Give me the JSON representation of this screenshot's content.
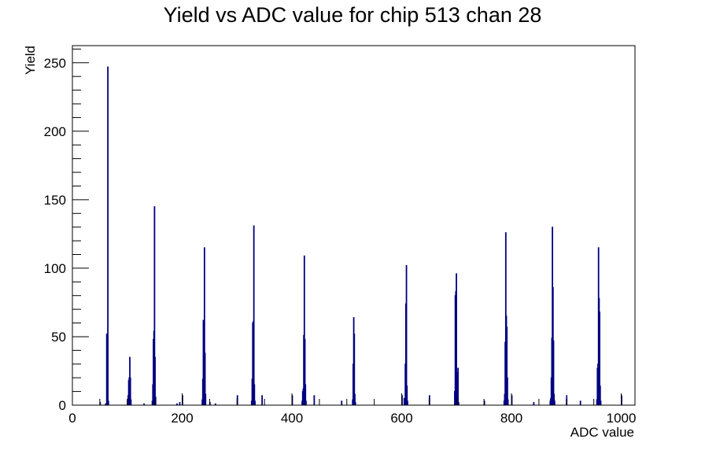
{
  "chart_data": {
    "type": "bar",
    "title": "Yield vs ADC value for chip 513 chan 28",
    "xlabel": "ADC value",
    "ylabel": "Yield",
    "xlim": [
      0,
      1025
    ],
    "ylim": [
      0,
      262.5
    ],
    "x_ticks": [
      0,
      200,
      400,
      600,
      800,
      1000
    ],
    "y_ticks": [
      0,
      50,
      100,
      150,
      200,
      250
    ],
    "grid": false,
    "legend": "none",
    "color": "#000080",
    "bin_width": 1,
    "bins": [
      [
        50,
        2
      ],
      [
        60,
        1
      ],
      [
        62,
        52
      ],
      [
        63,
        33
      ],
      [
        64,
        247
      ],
      [
        65,
        3
      ],
      [
        100,
        3
      ],
      [
        101,
        7
      ],
      [
        102,
        18
      ],
      [
        103,
        20
      ],
      [
        104,
        35
      ],
      [
        105,
        20
      ],
      [
        106,
        4
      ],
      [
        130,
        1
      ],
      [
        145,
        3
      ],
      [
        146,
        15
      ],
      [
        147,
        48
      ],
      [
        148,
        54
      ],
      [
        149,
        145
      ],
      [
        150,
        35
      ],
      [
        151,
        6
      ],
      [
        190,
        1
      ],
      [
        195,
        2
      ],
      [
        200,
        7
      ],
      [
        236,
        4
      ],
      [
        237,
        19
      ],
      [
        238,
        62
      ],
      [
        239,
        37
      ],
      [
        240,
        115
      ],
      [
        241,
        38
      ],
      [
        242,
        8
      ],
      [
        250,
        2
      ],
      [
        260,
        1
      ],
      [
        300,
        7
      ],
      [
        326,
        3
      ],
      [
        327,
        19
      ],
      [
        328,
        60
      ],
      [
        329,
        61
      ],
      [
        330,
        131
      ],
      [
        331,
        15
      ],
      [
        332,
        3
      ],
      [
        345,
        7
      ],
      [
        400,
        7
      ],
      [
        418,
        3
      ],
      [
        419,
        10
      ],
      [
        420,
        12
      ],
      [
        421,
        51
      ],
      [
        422,
        109
      ],
      [
        423,
        48
      ],
      [
        424,
        15
      ],
      [
        425,
        3
      ],
      [
        440,
        7
      ],
      [
        490,
        3
      ],
      [
        510,
        4
      ],
      [
        511,
        30
      ],
      [
        512,
        64
      ],
      [
        513,
        52
      ],
      [
        514,
        8
      ],
      [
        515,
        2
      ],
      [
        600,
        7
      ],
      [
        604,
        5
      ],
      [
        605,
        1
      ],
      [
        606,
        30
      ],
      [
        607,
        74
      ],
      [
        608,
        102
      ],
      [
        609,
        14
      ],
      [
        610,
        3
      ],
      [
        650,
        7
      ],
      [
        696,
        10
      ],
      [
        697,
        80
      ],
      [
        698,
        83
      ],
      [
        699,
        96
      ],
      [
        700,
        24
      ],
      [
        701,
        5
      ],
      [
        702,
        27
      ],
      [
        703,
        2
      ],
      [
        750,
        3
      ],
      [
        786,
        3
      ],
      [
        787,
        8
      ],
      [
        788,
        46
      ],
      [
        789,
        126
      ],
      [
        790,
        65
      ],
      [
        791,
        57
      ],
      [
        792,
        20
      ],
      [
        793,
        4
      ],
      [
        800,
        7
      ],
      [
        840,
        2
      ],
      [
        870,
        3
      ],
      [
        871,
        5
      ],
      [
        872,
        20
      ],
      [
        873,
        49
      ],
      [
        874,
        130
      ],
      [
        875,
        86
      ],
      [
        876,
        47
      ],
      [
        877,
        8
      ],
      [
        878,
        3
      ],
      [
        900,
        7
      ],
      [
        925,
        3
      ],
      [
        955,
        4
      ],
      [
        956,
        27
      ],
      [
        957,
        30
      ],
      [
        958,
        115
      ],
      [
        959,
        78
      ],
      [
        960,
        68
      ],
      [
        961,
        14
      ],
      [
        962,
        3
      ],
      [
        1000,
        7
      ]
    ]
  }
}
